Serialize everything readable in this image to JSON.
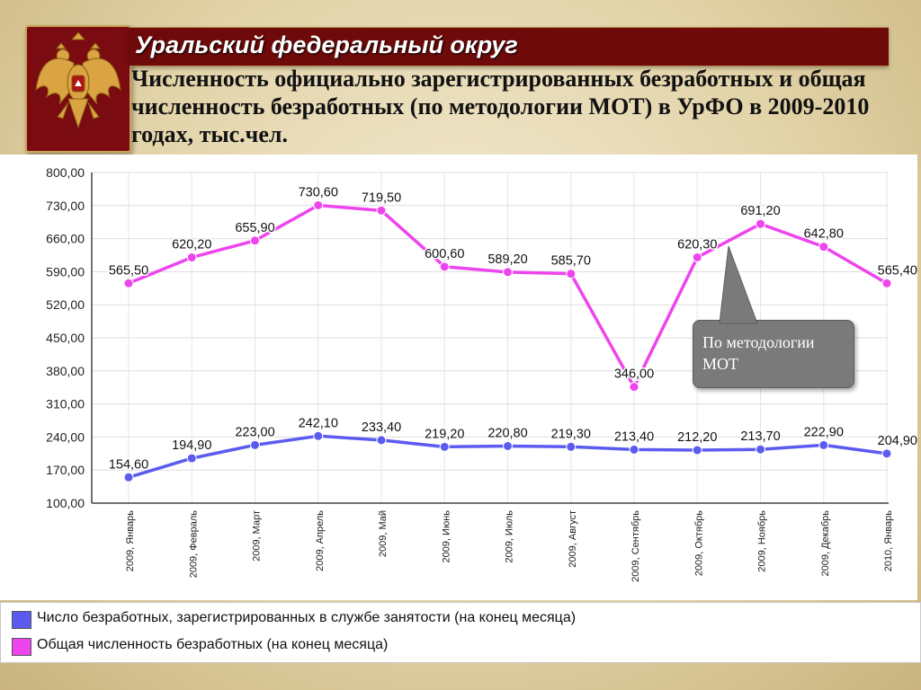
{
  "header": {
    "region_title": "Уральский федеральный округ",
    "subtitle": "Численность официально зарегистрированных безработных и общая численность безработных (по методологии МОТ) в УрФО в 2009-2010 годах, тыс.чел."
  },
  "emblem": {
    "icon": "double-headed-eagle-icon",
    "colors": {
      "background": "#7a0b10",
      "gold": "#d9a441"
    }
  },
  "callout": {
    "text": "По методологии МОТ"
  },
  "colors": {
    "registered": "#5b5bf0",
    "total": "#ee44ee"
  },
  "chart_data": {
    "type": "line",
    "categories": [
      "2009, Январь",
      "2009, Февраль",
      "2009, Март",
      "2009, Апрель",
      "2009, Май",
      "2009, Июнь",
      "2009, Июль",
      "2009, Август",
      "2009, Сентябрь",
      "2009, Октябрь",
      "2009, Ноябрь",
      "2009, Декабрь",
      "2010, Январь"
    ],
    "series": [
      {
        "name": "Число безработных, зарегистрированных в службе занятости (на конец месяца)",
        "values": [
          154.6,
          194.9,
          223.0,
          242.1,
          233.4,
          219.2,
          220.8,
          219.3,
          213.4,
          212.2,
          213.7,
          222.9,
          204.9
        ],
        "labels": [
          "154,60",
          "194,90",
          "223,00",
          "242,10",
          "233,40",
          "219,20",
          "220,80",
          "219,30",
          "213,40",
          "212,20",
          "213,70",
          "222,90",
          "204,90"
        ]
      },
      {
        "name": "Общая численность безработных (на конец месяца)",
        "values": [
          565.5,
          620.2,
          655.9,
          730.6,
          719.5,
          600.6,
          589.2,
          585.7,
          346.0,
          620.3,
          691.2,
          642.8,
          565.4
        ],
        "labels": [
          "565,50",
          "620,20",
          "655,90",
          "730,60",
          "719,50",
          "600,60",
          "589,20",
          "585,70",
          "346,00",
          "620,30",
          "691,20",
          "642,80",
          "565,40"
        ]
      }
    ],
    "y_ticks": [
      "800,00",
      "730,00",
      "660,00",
      "590,00",
      "520,00",
      "450,00",
      "380,00",
      "310,00",
      "240,00",
      "170,00",
      "100,00"
    ],
    "ylim": [
      100,
      800
    ],
    "grid": true,
    "legend_position": "bottom"
  }
}
